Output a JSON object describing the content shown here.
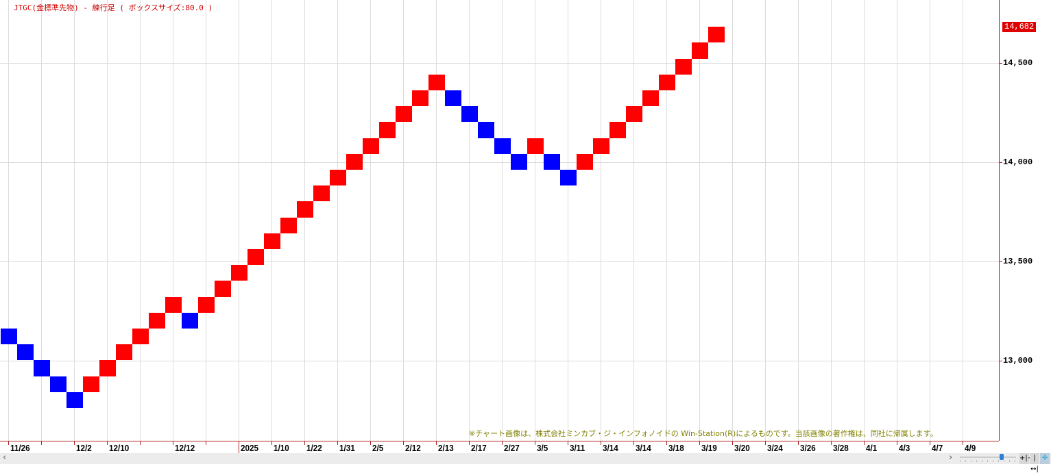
{
  "title": "JTGC(金標準先物) - 練行足 ( ボックスサイズ:80.0 )",
  "copyright_note": "※チャート画像は、株式会社ミンカブ・ジ・インフォノイドの Win-Station(R)によるものです。当該画像の著作権は、同社に帰属します。",
  "colors": {
    "up": "#ff0000",
    "down": "#0000ff",
    "axis": "#b22222",
    "grid": "#dcdcdc",
    "note": "#808000"
  },
  "chart_data": {
    "type": "renko",
    "box_size": 80,
    "last_price_label": "14,682",
    "ylim": [
      12600,
      14810
    ],
    "y_ticks": [
      {
        "value": 14500,
        "label": "14,500"
      },
      {
        "value": 14000,
        "label": "14,000"
      },
      {
        "value": 13500,
        "label": "13,500"
      },
      {
        "value": 13000,
        "label": "13,000"
      }
    ],
    "x_tick_labels": [
      "11/26",
      "",
      "12/2",
      "12/10",
      "",
      "12/12",
      "",
      "2025",
      "1/10",
      "1/22",
      "1/31",
      "2/5",
      "2/12",
      "2/13",
      "2/17",
      "2/27",
      "3/5",
      "3/11",
      "3/14",
      "3/14",
      "3/18",
      "3/19",
      "3/20",
      "3/24",
      "3/26",
      "3/28",
      "4/1",
      "4/3",
      "4/7",
      "4/9"
    ],
    "year_marker": "2025",
    "bricks": [
      {
        "low": 13082,
        "dir": "down"
      },
      {
        "low": 13002,
        "dir": "down"
      },
      {
        "low": 12922,
        "dir": "down"
      },
      {
        "low": 12842,
        "dir": "down"
      },
      {
        "low": 12762,
        "dir": "down"
      },
      {
        "low": 12842,
        "dir": "up"
      },
      {
        "low": 12922,
        "dir": "up"
      },
      {
        "low": 13002,
        "dir": "up"
      },
      {
        "low": 13082,
        "dir": "up"
      },
      {
        "low": 13162,
        "dir": "up"
      },
      {
        "low": 13242,
        "dir": "up"
      },
      {
        "low": 13162,
        "dir": "down"
      },
      {
        "low": 13242,
        "dir": "up"
      },
      {
        "low": 13322,
        "dir": "up"
      },
      {
        "low": 13402,
        "dir": "up"
      },
      {
        "low": 13482,
        "dir": "up"
      },
      {
        "low": 13562,
        "dir": "up"
      },
      {
        "low": 13642,
        "dir": "up"
      },
      {
        "low": 13722,
        "dir": "up"
      },
      {
        "low": 13802,
        "dir": "up"
      },
      {
        "low": 13882,
        "dir": "up"
      },
      {
        "low": 13962,
        "dir": "up"
      },
      {
        "low": 14042,
        "dir": "up"
      },
      {
        "low": 14122,
        "dir": "up"
      },
      {
        "low": 14202,
        "dir": "up"
      },
      {
        "low": 14282,
        "dir": "up"
      },
      {
        "low": 14362,
        "dir": "up"
      },
      {
        "low": 14282,
        "dir": "down"
      },
      {
        "low": 14202,
        "dir": "down"
      },
      {
        "low": 14122,
        "dir": "down"
      },
      {
        "low": 14042,
        "dir": "down"
      },
      {
        "low": 13962,
        "dir": "down"
      },
      {
        "low": 14042,
        "dir": "up"
      },
      {
        "low": 13962,
        "dir": "down"
      },
      {
        "low": 13882,
        "dir": "down"
      },
      {
        "low": 13962,
        "dir": "up"
      },
      {
        "low": 14042,
        "dir": "up"
      },
      {
        "low": 14122,
        "dir": "up"
      },
      {
        "low": 14202,
        "dir": "up"
      },
      {
        "low": 14282,
        "dir": "up"
      },
      {
        "low": 14362,
        "dir": "up"
      },
      {
        "low": 14442,
        "dir": "up"
      },
      {
        "low": 14522,
        "dir": "up"
      },
      {
        "low": 14602,
        "dir": "up"
      }
    ]
  },
  "scrollbar": {
    "left_icon": "chevron-left-icon",
    "right_icon": "chevron-right-icon",
    "left": "‹",
    "right": "›",
    "zoom_level": 0.71
  },
  "tools": [
    {
      "name": "zoom-in-icon",
      "glyph": "+|+"
    },
    {
      "name": "zoom-out-icon",
      "glyph": "|↔|"
    },
    {
      "name": "crosshair-icon",
      "glyph": "✛"
    }
  ]
}
